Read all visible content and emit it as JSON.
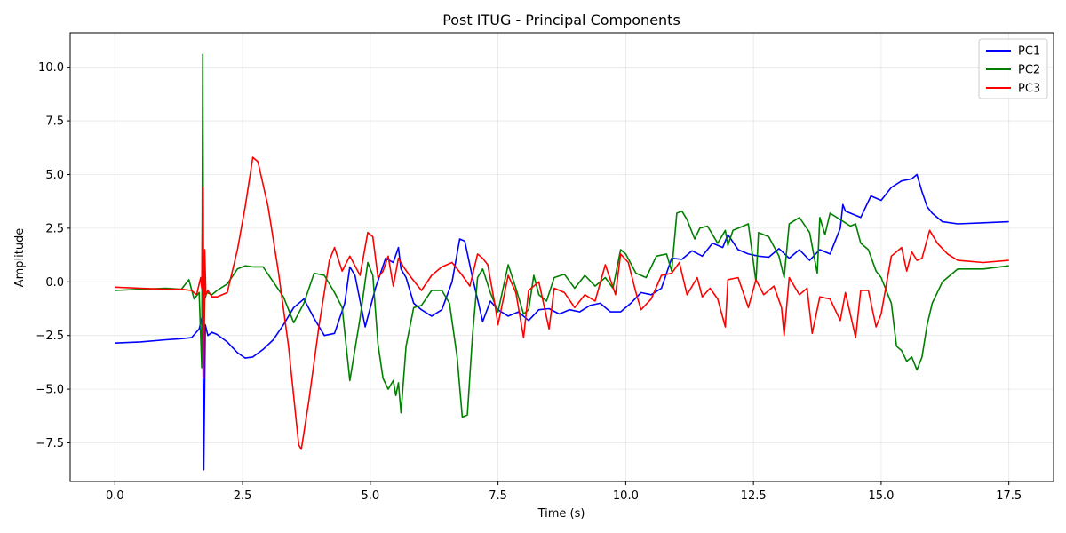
{
  "chart_data": {
    "type": "line",
    "title": "Post ITUG - Principal Components",
    "xlabel": "Time (s)",
    "ylabel": "Amplitude",
    "xlim": [
      -0.875,
      18.375
    ],
    "ylim": [
      -9.3,
      11.6
    ],
    "xticks": [
      {
        "value": 0.0,
        "label": "0.0"
      },
      {
        "value": 2.5,
        "label": "2.5"
      },
      {
        "value": 5.0,
        "label": "5.0"
      },
      {
        "value": 7.5,
        "label": "7.5"
      },
      {
        "value": 10.0,
        "label": "10.0"
      },
      {
        "value": 12.5,
        "label": "12.5"
      },
      {
        "value": 15.0,
        "label": "15.0"
      },
      {
        "value": 17.5,
        "label": "17.5"
      }
    ],
    "yticks": [
      {
        "value": -7.5,
        "label": "−7.5"
      },
      {
        "value": -5.0,
        "label": "−5.0"
      },
      {
        "value": -2.5,
        "label": "−2.5"
      },
      {
        "value": 0.0,
        "label": "0.0"
      },
      {
        "value": 2.5,
        "label": "2.5"
      },
      {
        "value": 5.0,
        "label": "5.0"
      },
      {
        "value": 7.5,
        "label": "7.5"
      },
      {
        "value": 10.0,
        "label": "10.0"
      }
    ],
    "grid": true,
    "legend_position": "top-right",
    "series": [
      {
        "name": "PC1",
        "color": "#0000ff",
        "x": [
          0.0,
          0.5,
          1.0,
          1.3,
          1.5,
          1.65,
          1.72,
          1.74,
          1.77,
          1.82,
          1.9,
          2.0,
          2.2,
          2.4,
          2.55,
          2.7,
          2.9,
          3.1,
          3.3,
          3.5,
          3.7,
          3.9,
          4.1,
          4.3,
          4.5,
          4.6,
          4.7,
          4.9,
          5.1,
          5.3,
          5.45,
          5.55,
          5.6,
          5.7,
          5.85,
          6.0,
          6.2,
          6.4,
          6.6,
          6.75,
          6.85,
          7.0,
          7.2,
          7.35,
          7.5,
          7.7,
          7.9,
          8.1,
          8.3,
          8.5,
          8.7,
          8.9,
          9.1,
          9.3,
          9.5,
          9.7,
          9.9,
          10.1,
          10.3,
          10.5,
          10.7,
          10.9,
          11.1,
          11.3,
          11.5,
          11.7,
          11.9,
          12.0,
          12.2,
          12.4,
          12.6,
          12.8,
          13.0,
          13.2,
          13.4,
          13.6,
          13.8,
          14.0,
          14.2,
          14.25,
          14.3,
          14.4,
          14.6,
          14.8,
          15.0,
          15.2,
          15.4,
          15.6,
          15.7,
          15.8,
          15.9,
          16.0,
          16.2,
          16.5,
          17.0,
          17.5
        ],
        "values": [
          -2.85,
          -2.8,
          -2.7,
          -2.65,
          -2.6,
          -2.2,
          -1.5,
          -8.75,
          -2.0,
          -2.5,
          -2.35,
          -2.45,
          -2.8,
          -3.3,
          -3.55,
          -3.5,
          -3.15,
          -2.7,
          -2.0,
          -1.2,
          -0.8,
          -1.7,
          -2.5,
          -2.4,
          -1.0,
          0.7,
          0.3,
          -2.1,
          -0.3,
          1.1,
          0.9,
          1.6,
          0.6,
          0.2,
          -1.0,
          -1.3,
          -1.6,
          -1.3,
          0.0,
          2.0,
          1.9,
          0.2,
          -1.85,
          -0.9,
          -1.3,
          -1.6,
          -1.4,
          -1.8,
          -1.3,
          -1.25,
          -1.5,
          -1.3,
          -1.4,
          -1.1,
          -1.0,
          -1.4,
          -1.4,
          -1.0,
          -0.5,
          -0.6,
          -0.3,
          1.1,
          1.05,
          1.45,
          1.2,
          1.8,
          1.6,
          2.2,
          1.5,
          1.3,
          1.2,
          1.15,
          1.55,
          1.1,
          1.5,
          1.0,
          1.5,
          1.3,
          2.5,
          3.6,
          3.3,
          3.2,
          3.0,
          4.0,
          3.8,
          4.4,
          4.7,
          4.8,
          5.0,
          4.2,
          3.5,
          3.2,
          2.8,
          2.7,
          2.75,
          2.8
        ]
      },
      {
        "name": "PC2",
        "color": "#008000",
        "x": [
          0.0,
          0.5,
          1.0,
          1.3,
          1.45,
          1.55,
          1.65,
          1.7,
          1.72,
          1.74,
          1.76,
          1.8,
          1.9,
          2.0,
          2.2,
          2.4,
          2.55,
          2.7,
          2.9,
          3.1,
          3.3,
          3.5,
          3.7,
          3.9,
          4.1,
          4.3,
          4.45,
          4.6,
          4.8,
          4.95,
          5.05,
          5.15,
          5.25,
          5.35,
          5.45,
          5.5,
          5.55,
          5.6,
          5.7,
          5.85,
          6.0,
          6.2,
          6.4,
          6.55,
          6.7,
          6.8,
          6.9,
          7.0,
          7.1,
          7.2,
          7.35,
          7.5,
          7.7,
          7.85,
          8.0,
          8.1,
          8.2,
          8.3,
          8.45,
          8.6,
          8.8,
          9.0,
          9.2,
          9.4,
          9.6,
          9.75,
          9.9,
          10.0,
          10.2,
          10.4,
          10.6,
          10.8,
          10.9,
          11.0,
          11.1,
          11.2,
          11.35,
          11.45,
          11.6,
          11.8,
          11.95,
          12.0,
          12.1,
          12.2,
          12.4,
          12.55,
          12.6,
          12.8,
          13.0,
          13.1,
          13.2,
          13.4,
          13.6,
          13.75,
          13.8,
          13.9,
          14.0,
          14.2,
          14.4,
          14.5,
          14.6,
          14.75,
          14.9,
          15.0,
          15.2,
          15.3,
          15.4,
          15.5,
          15.6,
          15.7,
          15.8,
          15.9,
          16.0,
          16.2,
          16.5,
          17.0,
          17.5
        ],
        "values": [
          -0.4,
          -0.35,
          -0.3,
          -0.35,
          0.1,
          -0.8,
          -0.5,
          -4.0,
          10.6,
          -3.5,
          -0.8,
          -0.5,
          -0.6,
          -0.4,
          -0.1,
          0.6,
          0.75,
          0.7,
          0.7,
          0.0,
          -0.7,
          -1.9,
          -1.0,
          0.4,
          0.3,
          -0.5,
          -1.2,
          -4.6,
          -1.7,
          0.9,
          0.3,
          -2.9,
          -4.5,
          -5.0,
          -4.6,
          -5.3,
          -4.7,
          -6.1,
          -3.0,
          -1.2,
          -1.1,
          -0.4,
          -0.4,
          -1.0,
          -3.5,
          -6.3,
          -6.2,
          -2.5,
          0.2,
          0.6,
          -0.5,
          -1.4,
          0.8,
          -0.3,
          -1.5,
          -1.3,
          0.3,
          -0.6,
          -0.9,
          0.2,
          0.35,
          -0.3,
          0.3,
          -0.2,
          0.2,
          -0.3,
          1.5,
          1.3,
          0.4,
          0.2,
          1.2,
          1.3,
          0.5,
          3.2,
          3.3,
          2.9,
          2.0,
          2.5,
          2.6,
          1.8,
          2.4,
          1.7,
          2.4,
          2.5,
          2.7,
          0.0,
          2.3,
          2.1,
          1.2,
          0.2,
          2.7,
          3.0,
          2.3,
          0.4,
          3.0,
          2.2,
          3.2,
          2.9,
          2.6,
          2.7,
          1.8,
          1.5,
          0.5,
          0.2,
          -1.0,
          -3.0,
          -3.2,
          -3.7,
          -3.5,
          -4.1,
          -3.5,
          -2.0,
          -1.0,
          0.0,
          0.6,
          0.6,
          0.75
        ]
      },
      {
        "name": "PC3",
        "color": "#ff0000",
        "x": [
          0.0,
          0.5,
          1.0,
          1.3,
          1.5,
          1.6,
          1.68,
          1.7,
          1.72,
          1.74,
          1.76,
          1.78,
          1.82,
          1.9,
          2.0,
          2.2,
          2.4,
          2.55,
          2.7,
          2.8,
          3.0,
          3.2,
          3.4,
          3.6,
          3.65,
          3.8,
          4.0,
          4.2,
          4.3,
          4.45,
          4.6,
          4.8,
          4.95,
          5.05,
          5.15,
          5.25,
          5.35,
          5.45,
          5.55,
          5.65,
          5.8,
          6.0,
          6.2,
          6.4,
          6.6,
          6.8,
          6.95,
          7.1,
          7.2,
          7.3,
          7.45,
          7.5,
          7.7,
          7.85,
          8.0,
          8.1,
          8.3,
          8.5,
          8.6,
          8.8,
          9.0,
          9.2,
          9.4,
          9.6,
          9.8,
          9.9,
          10.05,
          10.2,
          10.3,
          10.5,
          10.7,
          10.9,
          11.05,
          11.2,
          11.4,
          11.5,
          11.65,
          11.8,
          11.95,
          12.0,
          12.2,
          12.4,
          12.55,
          12.7,
          12.9,
          13.05,
          13.1,
          13.2,
          13.4,
          13.55,
          13.65,
          13.8,
          14.0,
          14.2,
          14.3,
          14.5,
          14.6,
          14.75,
          14.9,
          15.0,
          15.2,
          15.4,
          15.5,
          15.6,
          15.7,
          15.8,
          15.95,
          16.1,
          16.3,
          16.5,
          17.0,
          17.5
        ],
        "values": [
          -0.25,
          -0.3,
          -0.35,
          -0.35,
          -0.4,
          -0.6,
          0.2,
          -0.3,
          4.4,
          -4.5,
          1.5,
          -0.6,
          -0.4,
          -0.7,
          -0.7,
          -0.5,
          1.5,
          3.5,
          5.8,
          5.6,
          3.5,
          0.5,
          -3.0,
          -7.6,
          -7.8,
          -5.5,
          -2.0,
          1.0,
          1.6,
          0.5,
          1.2,
          0.3,
          2.3,
          2.1,
          0.2,
          0.5,
          1.2,
          -0.2,
          1.1,
          0.7,
          0.2,
          -0.4,
          0.3,
          0.7,
          0.9,
          0.3,
          -0.2,
          1.3,
          1.1,
          0.8,
          -1.2,
          -2.0,
          0.3,
          -0.5,
          -2.6,
          -0.4,
          0.0,
          -2.2,
          -0.3,
          -0.5,
          -1.2,
          -0.6,
          -0.9,
          0.8,
          -0.6,
          1.3,
          0.9,
          -0.5,
          -1.3,
          -0.8,
          0.3,
          0.4,
          0.9,
          -0.6,
          0.2,
          -0.7,
          -0.3,
          -0.8,
          -2.1,
          0.1,
          0.2,
          -1.2,
          0.1,
          -0.6,
          -0.2,
          -1.2,
          -2.5,
          0.2,
          -0.6,
          -0.3,
          -2.4,
          -0.7,
          -0.8,
          -1.8,
          -0.5,
          -2.6,
          -0.4,
          -0.4,
          -2.1,
          -1.5,
          1.2,
          1.6,
          0.5,
          1.4,
          1.0,
          1.1,
          2.4,
          1.8,
          1.3,
          1.0,
          0.9,
          1.0
        ]
      }
    ]
  }
}
